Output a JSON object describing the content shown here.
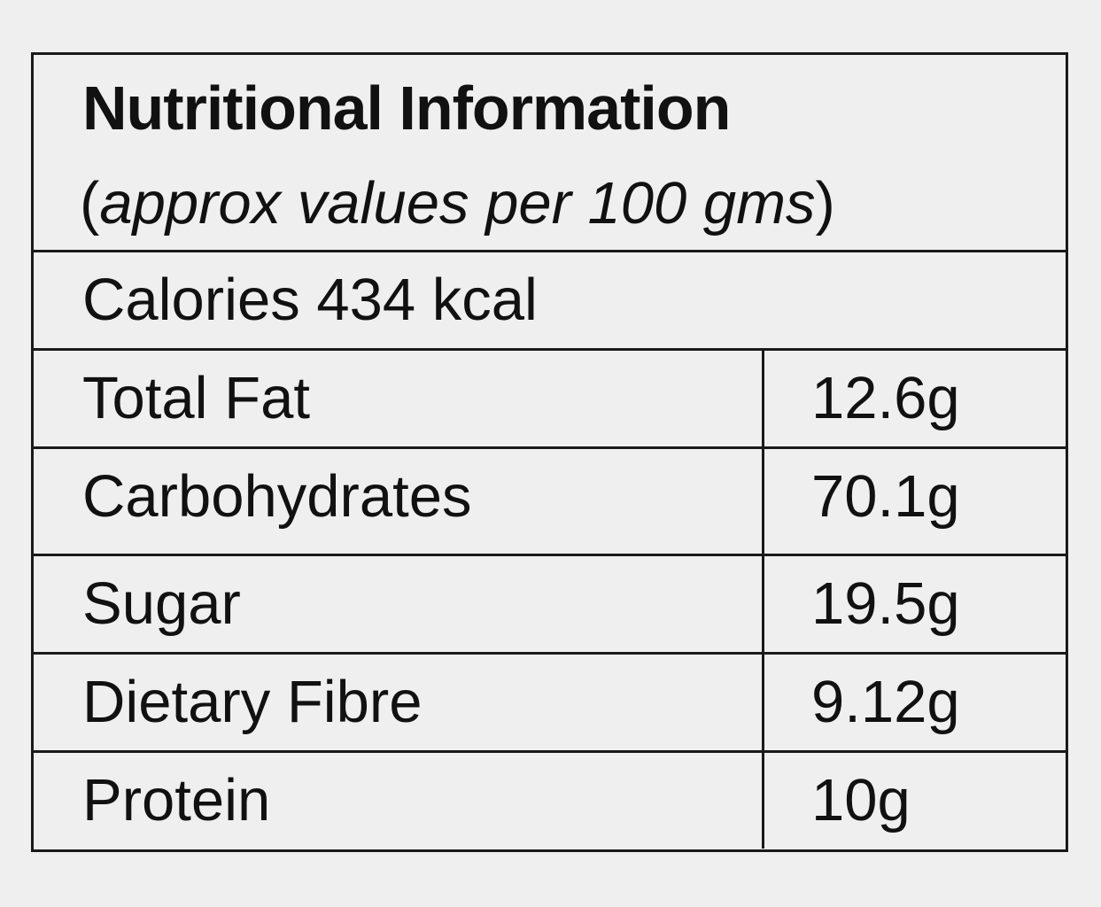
{
  "header": {
    "title": "Nutritional Information",
    "subtitle_open": "(",
    "subtitle_text": "approx values per 100 gms",
    "subtitle_close": ")"
  },
  "calories": "Calories 434 kcal",
  "nutrients": [
    {
      "name": "Total Fat",
      "value": "12.6g"
    },
    {
      "name": "Carbohydrates",
      "value": "70.1g"
    },
    {
      "name": "Sugar",
      "value": "19.5g"
    },
    {
      "name": "Dietary Fibre",
      "value": "9.12g"
    },
    {
      "name": "Protein",
      "value": "10g"
    }
  ],
  "colors": {
    "background": "#efefef",
    "border": "#1a1a1a",
    "text": "#111111"
  }
}
